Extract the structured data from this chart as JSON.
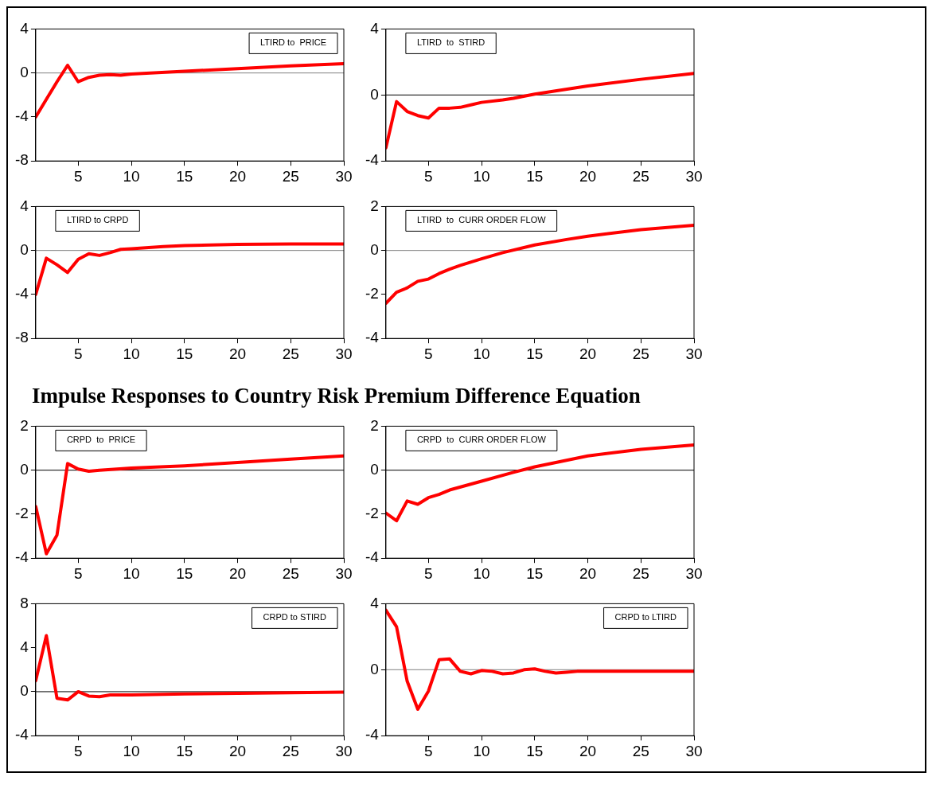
{
  "chart_data": [
    {
      "type": "line",
      "legend": "top right",
      "xlim": [
        1,
        30
      ],
      "xticks": [
        5,
        10,
        15,
        20,
        25,
        30
      ],
      "ylim": [
        -8,
        4
      ],
      "yticks": [
        -8,
        -4,
        0,
        4
      ],
      "ref_lines": [
        {
          "axis": "y",
          "value": 0,
          "color": "#808080"
        }
      ],
      "series": [
        {
          "name": "LTIRD to  PRICE",
          "color": "#ff0000",
          "x": [
            1,
            2,
            3,
            4,
            5,
            6,
            7,
            8,
            9,
            10,
            15,
            20,
            25,
            30
          ],
          "values": [
            -4,
            -2.4,
            -0.8,
            0.7,
            -0.8,
            -0.4,
            -0.2,
            -0.15,
            -0.2,
            -0.1,
            0.15,
            0.4,
            0.65,
            0.85
          ]
        }
      ]
    },
    {
      "type": "line",
      "legend": "top left",
      "xlim": [
        1,
        30
      ],
      "xticks": [
        5,
        10,
        15,
        20,
        25,
        30
      ],
      "ylim": [
        -4,
        4
      ],
      "yticks": [
        -4,
        0,
        4
      ],
      "ref_lines": [
        {
          "axis": "y",
          "value": 0,
          "color": "#000000"
        }
      ],
      "series": [
        {
          "name": "LTIRD  to  STIRD",
          "color": "#ff0000",
          "x": [
            1,
            2,
            3,
            4,
            5,
            6,
            7,
            8,
            9,
            10,
            12,
            13,
            15,
            20,
            25,
            30
          ],
          "values": [
            -3.2,
            -0.4,
            -1.0,
            -1.25,
            -1.4,
            -0.8,
            -0.8,
            -0.75,
            -0.6,
            -0.45,
            -0.3,
            -0.2,
            0.05,
            0.55,
            0.95,
            1.3
          ]
        }
      ]
    },
    {
      "type": "line",
      "legend": "top left",
      "xlim": [
        1,
        30
      ],
      "xticks": [
        5,
        10,
        15,
        20,
        25,
        30
      ],
      "ylim": [
        -8,
        4
      ],
      "yticks": [
        -8,
        -4,
        0,
        4
      ],
      "ref_lines": [
        {
          "axis": "y",
          "value": 0,
          "color": "#808080"
        }
      ],
      "series": [
        {
          "name": "LTIRD to CRPD",
          "color": "#ff0000",
          "x": [
            1,
            2,
            3,
            4,
            5,
            6,
            7,
            8,
            9,
            10,
            13,
            15,
            20,
            25,
            30
          ],
          "values": [
            -4,
            -0.7,
            -1.3,
            -2,
            -0.8,
            -0.3,
            -0.45,
            -0.2,
            0.1,
            0.15,
            0.35,
            0.45,
            0.55,
            0.6,
            0.6
          ]
        }
      ]
    },
    {
      "type": "line",
      "legend": "top left",
      "xlim": [
        1,
        30
      ],
      "xticks": [
        5,
        10,
        15,
        20,
        25,
        30
      ],
      "ylim": [
        -4,
        2
      ],
      "yticks": [
        -4,
        -2,
        0,
        2
      ],
      "ref_lines": [
        {
          "axis": "y",
          "value": 0,
          "color": "#808080"
        }
      ],
      "series": [
        {
          "name": "LTIRD  to  CURR ORDER FLOW",
          "color": "#ff0000",
          "x": [
            1,
            2,
            3,
            4,
            5,
            6,
            7,
            8,
            10,
            12,
            15,
            18,
            20,
            25,
            30
          ],
          "values": [
            -2.4,
            -1.9,
            -1.7,
            -1.4,
            -1.3,
            -1.05,
            -0.85,
            -0.68,
            -0.38,
            -0.1,
            0.25,
            0.5,
            0.65,
            0.95,
            1.15
          ]
        }
      ]
    },
    {
      "type": "line",
      "title": "Impulse Responses to Country Risk Premium Difference Equation",
      "legend": "top left",
      "xlim": [
        1,
        30
      ],
      "xticks": [
        5,
        10,
        15,
        20,
        25,
        30
      ],
      "ylim": [
        -4,
        2
      ],
      "yticks": [
        -4,
        -2,
        0,
        2
      ],
      "ref_lines": [
        {
          "axis": "y",
          "value": 0,
          "color": "#000000"
        }
      ],
      "series": [
        {
          "name": "CRPD  to  PRICE",
          "color": "#ff0000",
          "x": [
            1,
            2,
            3,
            4,
            5,
            6,
            7,
            10,
            15,
            20,
            25,
            30
          ],
          "values": [
            -1.65,
            -3.8,
            -2.95,
            0.3,
            0.05,
            -0.05,
            0,
            0.1,
            0.2,
            0.35,
            0.5,
            0.65
          ]
        }
      ]
    },
    {
      "type": "line",
      "legend": "top left",
      "xlim": [
        1,
        30
      ],
      "xticks": [
        5,
        10,
        15,
        20,
        25,
        30
      ],
      "ylim": [
        -4,
        2
      ],
      "yticks": [
        -4,
        -2,
        0,
        2
      ],
      "ref_lines": [
        {
          "axis": "y",
          "value": 0,
          "color": "#000000"
        }
      ],
      "series": [
        {
          "name": "CRPD  to  CURR ORDER FLOW",
          "color": "#ff0000",
          "x": [
            1,
            2,
            3,
            4,
            5,
            6,
            7,
            10,
            13,
            15,
            20,
            25,
            30
          ],
          "values": [
            -1.95,
            -2.3,
            -1.4,
            -1.55,
            -1.25,
            -1.1,
            -0.9,
            -0.5,
            -0.1,
            0.15,
            0.65,
            0.95,
            1.15
          ]
        }
      ]
    },
    {
      "type": "line",
      "legend": "top right",
      "xlim": [
        1,
        30
      ],
      "xticks": [
        5,
        10,
        15,
        20,
        25,
        30
      ],
      "ylim": [
        -4,
        8
      ],
      "yticks": [
        -4,
        0,
        4,
        8
      ],
      "ref_lines": [
        {
          "axis": "y",
          "value": 0,
          "color": "#000000"
        }
      ],
      "series": [
        {
          "name": "CRPD to STIRD",
          "color": "#ff0000",
          "x": [
            1,
            2,
            3,
            4,
            5,
            6,
            7,
            8,
            10,
            15,
            20,
            25,
            30
          ],
          "values": [
            1.0,
            5.1,
            -0.6,
            -0.75,
            0,
            -0.4,
            -0.45,
            -0.3,
            -0.3,
            -0.2,
            -0.15,
            -0.1,
            -0.05
          ]
        }
      ]
    },
    {
      "type": "line",
      "legend": "top right",
      "xlim": [
        1,
        30
      ],
      "xticks": [
        5,
        10,
        15,
        20,
        25,
        30
      ],
      "ylim": [
        -4,
        4
      ],
      "yticks": [
        -4,
        0,
        4
      ],
      "ref_lines": [
        {
          "axis": "y",
          "value": 0,
          "color": "#808080"
        }
      ],
      "series": [
        {
          "name": "CRPD to LTIRD",
          "color": "#ff0000",
          "x": [
            1,
            2,
            3,
            4,
            5,
            6,
            7,
            8,
            9,
            10,
            11,
            12,
            13,
            14,
            15,
            16,
            17,
            18,
            19,
            25,
            30
          ],
          "values": [
            3.6,
            2.6,
            -0.7,
            -2.4,
            -1.3,
            0.6,
            0.65,
            -0.1,
            -0.25,
            -0.05,
            -0.1,
            -0.25,
            -0.2,
            0,
            0.05,
            -0.1,
            -0.2,
            -0.15,
            -0.1,
            -0.1,
            -0.1
          ]
        }
      ]
    }
  ]
}
